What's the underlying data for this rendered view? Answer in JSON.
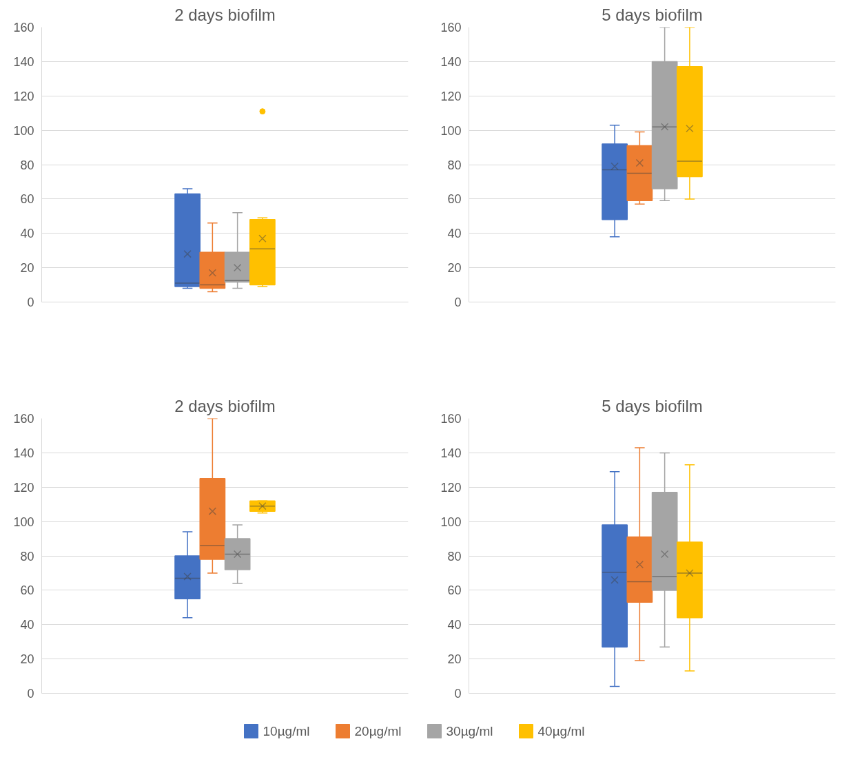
{
  "chart_data": [
    {
      "type": "box",
      "title": "2 days biofilm",
      "categories": [
        null
      ],
      "ylim": [
        0,
        160
      ],
      "yticks": [
        0,
        20,
        40,
        60,
        80,
        100,
        120,
        140,
        160
      ],
      "grid": "y",
      "tick_labels": "y",
      "legend": "bottom",
      "series": [
        {
          "name": "10µg/ml",
          "color": "#4472c4",
          "boxes": [
            {
              "low": 8,
              "q1": 9,
              "median": 11,
              "q3": 63,
              "high": 66,
              "mean": 28
            }
          ]
        },
        {
          "name": "20µg/ml",
          "color": "#ed7d31",
          "boxes": [
            {
              "low": 6,
              "q1": 8,
              "median": 10,
              "q3": 29,
              "high": 46,
              "mean": 17
            }
          ]
        },
        {
          "name": "30µg/ml",
          "color": "#a5a5a5",
          "boxes": [
            {
              "low": 8,
              "q1": 11.6,
              "median": 12.5,
              "q3": 29,
              "high": 52,
              "mean": 20
            }
          ]
        },
        {
          "name": "40µg/ml",
          "color": "#ffc000",
          "boxes": [
            {
              "low": 9,
              "q1": 10,
              "median": 31,
              "q3": 48,
              "high": 49,
              "mean": 37,
              "outliers": [
                111
              ]
            }
          ]
        }
      ]
    },
    {
      "type": "box",
      "title": "5 days biofilm",
      "categories": [
        null
      ],
      "ylim": [
        0,
        160
      ],
      "yticks": [
        0,
        20,
        40,
        60,
        80,
        100,
        120,
        140,
        160
      ],
      "grid": "y",
      "tick_labels": "y",
      "series": [
        {
          "color": "#4472c4",
          "boxes": [
            {
              "low": 38,
              "q1": 48,
              "median": 77,
              "q3": 92,
              "high": 103,
              "mean": 79
            }
          ]
        },
        {
          "color": "#ed7d31",
          "boxes": [
            {
              "low": 57,
              "q1": 59,
              "median": 75,
              "q3": 91,
              "high": 99,
              "mean": 81
            }
          ]
        },
        {
          "color": "#a5a5a5",
          "boxes": [
            {
              "low": 59,
              "q1": 66,
              "median": 102,
              "q3": 140,
              "high": 160,
              "mean": 102
            }
          ]
        },
        {
          "color": "#ffc000",
          "boxes": [
            {
              "low": 60,
              "q1": 73,
              "median": 82,
              "q3": 137,
              "high": 160,
              "mean": 101
            }
          ]
        }
      ]
    },
    {
      "type": "box",
      "title": "2 days biofilm",
      "categories": [
        null
      ],
      "ylim": [
        0,
        160
      ],
      "yticks": [
        0,
        20,
        40,
        60,
        80,
        100,
        120,
        140,
        160
      ],
      "grid": "y",
      "tick_labels": "y",
      "series": [
        {
          "color": "#4472c4",
          "boxes": [
            {
              "low": 44,
              "q1": 55,
              "median": 67,
              "q3": 80,
              "high": 94,
              "mean": 68
            }
          ]
        },
        {
          "color": "#ed7d31",
          "boxes": [
            {
              "low": 70,
              "q1": 78,
              "median": 86,
              "q3": 125,
              "high": 160,
              "mean": 106
            }
          ]
        },
        {
          "color": "#a5a5a5",
          "boxes": [
            {
              "low": 64,
              "q1": 72,
              "median": 81,
              "q3": 90,
              "high": 98,
              "mean": 81
            }
          ]
        },
        {
          "color": "#ffc000",
          "boxes": [
            {
              "low": 105,
              "q1": 106,
              "median": 109,
              "q3": 112,
              "high": 112,
              "mean": 109
            }
          ]
        }
      ]
    },
    {
      "type": "box",
      "title": "5 days biofilm",
      "categories": [
        null
      ],
      "ylim": [
        0,
        160
      ],
      "yticks": [
        0,
        20,
        40,
        60,
        80,
        100,
        120,
        140,
        160
      ],
      "grid": "y",
      "tick_labels": "y",
      "series": [
        {
          "color": "#4472c4",
          "boxes": [
            {
              "low": 4,
              "q1": 27,
              "median": 70.5,
              "q3": 98,
              "high": 129,
              "mean": 66
            }
          ]
        },
        {
          "color": "#ed7d31",
          "boxes": [
            {
              "low": 19,
              "q1": 53,
              "median": 65,
              "q3": 91,
              "high": 143,
              "mean": 75
            }
          ]
        },
        {
          "color": "#a5a5a5",
          "boxes": [
            {
              "low": 27,
              "q1": 60,
              "median": 68,
              "q3": 117,
              "high": 140,
              "mean": 81
            }
          ]
        },
        {
          "color": "#ffc000",
          "boxes": [
            {
              "low": 13,
              "q1": 44,
              "median": 70,
              "q3": 88,
              "high": 133,
              "mean": 70
            }
          ]
        }
      ]
    }
  ]
}
